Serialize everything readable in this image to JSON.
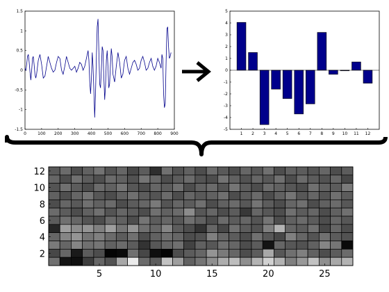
{
  "chart_data": [
    {
      "type": "line",
      "title": "",
      "xlabel": "",
      "ylabel": "",
      "xlim": [
        0,
        900
      ],
      "ylim": [
        -1.5,
        1.5
      ],
      "x_ticks": [
        "0",
        "100",
        "200",
        "300",
        "400",
        "500",
        "600",
        "700",
        "800",
        "900"
      ],
      "y_ticks": [
        "1.5",
        "1",
        "0.5",
        "0",
        "-0.5",
        "-1",
        "-1.5"
      ],
      "series": [
        {
          "color": "#00008b",
          "x": [
            0,
            5,
            10,
            15,
            20,
            25,
            30,
            35,
            40,
            45,
            50,
            55,
            60,
            65,
            70,
            80,
            90,
            100,
            110,
            120,
            130,
            140,
            150,
            160,
            170,
            180,
            190,
            200,
            210,
            220,
            230,
            240,
            250,
            260,
            270,
            280,
            290,
            300,
            310,
            320,
            330,
            340,
            350,
            360,
            370,
            380,
            385,
            390,
            395,
            400,
            405,
            410,
            415,
            420,
            425,
            430,
            435,
            440,
            445,
            450,
            455,
            460,
            465,
            470,
            475,
            480,
            485,
            490,
            495,
            500,
            505,
            510,
            515,
            520,
            525,
            530,
            540,
            550,
            560,
            570,
            580,
            590,
            600,
            610,
            620,
            630,
            640,
            650,
            660,
            670,
            680,
            690,
            700,
            710,
            720,
            730,
            740,
            750,
            760,
            770,
            780,
            790,
            800,
            810,
            820,
            825,
            830,
            835,
            840,
            845,
            850,
            855,
            860,
            865,
            870,
            875,
            880
          ],
          "y": [
            0.05,
            0.0,
            0.15,
            0.35,
            0.4,
            0.2,
            -0.05,
            -0.25,
            0.0,
            0.3,
            0.35,
            0.15,
            -0.1,
            -0.2,
            -0.1,
            0.25,
            0.4,
            0.15,
            -0.2,
            -0.15,
            0.1,
            0.35,
            0.2,
            0.05,
            -0.05,
            0.0,
            0.2,
            0.35,
            0.3,
            0.0,
            -0.1,
            0.1,
            0.35,
            0.2,
            0.05,
            0.0,
            0.05,
            0.1,
            -0.05,
            0.05,
            0.2,
            0.15,
            0.0,
            0.1,
            0.3,
            0.5,
            0.25,
            -0.3,
            -0.6,
            -0.2,
            0.45,
            0.1,
            -0.5,
            -1.2,
            -0.6,
            0.3,
            1.1,
            1.3,
            0.5,
            -0.35,
            -0.45,
            0.0,
            0.6,
            0.5,
            -0.2,
            -0.75,
            -0.4,
            0.25,
            0.5,
            0.1,
            -0.45,
            -0.35,
            0.15,
            0.55,
            0.35,
            -0.1,
            -0.3,
            0.1,
            0.45,
            0.2,
            -0.2,
            -0.1,
            0.25,
            0.35,
            0.05,
            -0.1,
            0.05,
            0.2,
            0.25,
            0.15,
            0.0,
            0.05,
            0.25,
            0.35,
            0.2,
            0.0,
            0.05,
            0.2,
            0.3,
            0.1,
            0.0,
            0.1,
            0.3,
            0.2,
            0.05,
            0.4,
            0.3,
            -0.6,
            -0.95,
            -0.85,
            0.2,
            1.05,
            1.1,
            0.6,
            0.3,
            0.35,
            0.45
          ]
        }
      ]
    },
    {
      "type": "bar",
      "title": "",
      "xlabel": "",
      "ylabel": "",
      "categories": [
        "1",
        "2",
        "3",
        "4",
        "5",
        "6",
        "7",
        "8",
        "9",
        "10",
        "11",
        "12"
      ],
      "values": [
        4.05,
        1.5,
        -4.6,
        -1.6,
        -2.4,
        -3.7,
        -2.85,
        3.2,
        -0.35,
        -0.05,
        0.7,
        -1.1
      ],
      "ylim": [
        -5,
        5
      ],
      "y_ticks": [
        "5",
        "4",
        "3",
        "2",
        "1",
        "0",
        "-1",
        "-2",
        "-3",
        "-4",
        "-5"
      ],
      "bar_color": "#00008b"
    },
    {
      "type": "heatmap",
      "title": "",
      "xlabel": "",
      "ylabel": "",
      "xlim": [
        0.5,
        27.5
      ],
      "ylim": [
        0.5,
        12.5
      ],
      "x_ticks": [
        "5",
        "10",
        "15",
        "20",
        "25"
      ],
      "y_ticks": [
        "2",
        "4",
        "6",
        "8",
        "10",
        "12"
      ],
      "colormap": "gray",
      "rows_top_to_bottom": [
        [
          0.35,
          0.42,
          0.3,
          0.38,
          0.45,
          0.33,
          0.4,
          0.28,
          0.36,
          0.18,
          0.44,
          0.32,
          0.38,
          0.3,
          0.42,
          0.35,
          0.3,
          0.4,
          0.34,
          0.44,
          0.3,
          0.38,
          0.36,
          0.33,
          0.4,
          0.3,
          0.36
        ],
        [
          0.4,
          0.3,
          0.44,
          0.36,
          0.31,
          0.42,
          0.38,
          0.32,
          0.46,
          0.4,
          0.3,
          0.36,
          0.42,
          0.33,
          0.3,
          0.45,
          0.38,
          0.32,
          0.4,
          0.34,
          0.44,
          0.3,
          0.42,
          0.36,
          0.32,
          0.4,
          0.28
        ],
        [
          0.33,
          0.44,
          0.36,
          0.3,
          0.42,
          0.38,
          0.46,
          0.34,
          0.3,
          0.4,
          0.36,
          0.44,
          0.3,
          0.38,
          0.42,
          0.33,
          0.46,
          0.36,
          0.3,
          0.42,
          0.38,
          0.34,
          0.3,
          0.44,
          0.38,
          0.36,
          0.48
        ],
        [
          0.38,
          0.31,
          0.4,
          0.46,
          0.34,
          0.3,
          0.38,
          0.44,
          0.36,
          0.33,
          0.42,
          0.3,
          0.4,
          0.35,
          0.38,
          0.44,
          0.3,
          0.36,
          0.42,
          0.3,
          0.38,
          0.46,
          0.34,
          0.4,
          0.33,
          0.44,
          0.36
        ],
        [
          0.3,
          0.4,
          0.35,
          0.44,
          0.38,
          0.42,
          0.3,
          0.36,
          0.4,
          0.48,
          0.33,
          0.4,
          0.36,
          0.44,
          0.3,
          0.38,
          0.42,
          0.34,
          0.46,
          0.36,
          0.3,
          0.4,
          0.44,
          0.3,
          0.38,
          0.42,
          0.34
        ],
        [
          0.42,
          0.36,
          0.3,
          0.38,
          0.44,
          0.33,
          0.4,
          0.36,
          0.3,
          0.44,
          0.38,
          0.42,
          0.55,
          0.34,
          0.4,
          0.3,
          0.36,
          0.22,
          0.4,
          0.34,
          0.3,
          0.44,
          0.36,
          0.4,
          0.3,
          0.38,
          0.44
        ],
        [
          0.36,
          0.44,
          0.4,
          0.33,
          0.3,
          0.42,
          0.38,
          0.3,
          0.46,
          0.36,
          0.4,
          0.34,
          0.44,
          0.38,
          0.3,
          0.42,
          0.36,
          0.4,
          0.33,
          0.46,
          0.3,
          0.38,
          0.42,
          0.36,
          0.3,
          0.4,
          0.34
        ],
        [
          0.15,
          0.62,
          0.55,
          0.58,
          0.5,
          0.62,
          0.46,
          0.58,
          0.44,
          0.4,
          0.52,
          0.36,
          0.3,
          0.2,
          0.4,
          0.28,
          0.44,
          0.36,
          0.32,
          0.5,
          0.7,
          0.4,
          0.36,
          0.44,
          0.28,
          0.4,
          0.3
        ],
        [
          0.4,
          0.52,
          0.58,
          0.46,
          0.5,
          0.42,
          0.36,
          0.44,
          0.3,
          0.38,
          0.44,
          0.4,
          0.3,
          0.32,
          0.5,
          0.4,
          0.36,
          0.3,
          0.44,
          0.34,
          0.28,
          0.5,
          0.4,
          0.33,
          0.44,
          0.36,
          0.32
        ],
        [
          0.48,
          0.4,
          0.52,
          0.44,
          0.46,
          0.38,
          0.42,
          0.36,
          0.2,
          0.34,
          0.4,
          0.44,
          0.26,
          0.38,
          0.34,
          0.44,
          0.4,
          0.3,
          0.36,
          0.08,
          0.4,
          0.34,
          0.32,
          0.38,
          0.52,
          0.46,
          0.04
        ],
        [
          0.28,
          0.4,
          0.1,
          0.36,
          0.3,
          0.02,
          0.04,
          0.44,
          0.28,
          0.06,
          0.02,
          0.3,
          0.36,
          0.4,
          0.58,
          0.48,
          0.4,
          0.3,
          0.36,
          0.66,
          0.34,
          0.44,
          0.5,
          0.38,
          0.3,
          0.36,
          0.42
        ],
        [
          0.44,
          0.08,
          0.06,
          0.24,
          0.4,
          0.32,
          0.66,
          0.92,
          0.42,
          0.36,
          0.76,
          0.62,
          0.38,
          0.46,
          0.56,
          0.68,
          0.74,
          0.56,
          0.7,
          0.82,
          0.7,
          0.5,
          0.6,
          0.76,
          0.56,
          0.66,
          0.7
        ]
      ]
    }
  ]
}
